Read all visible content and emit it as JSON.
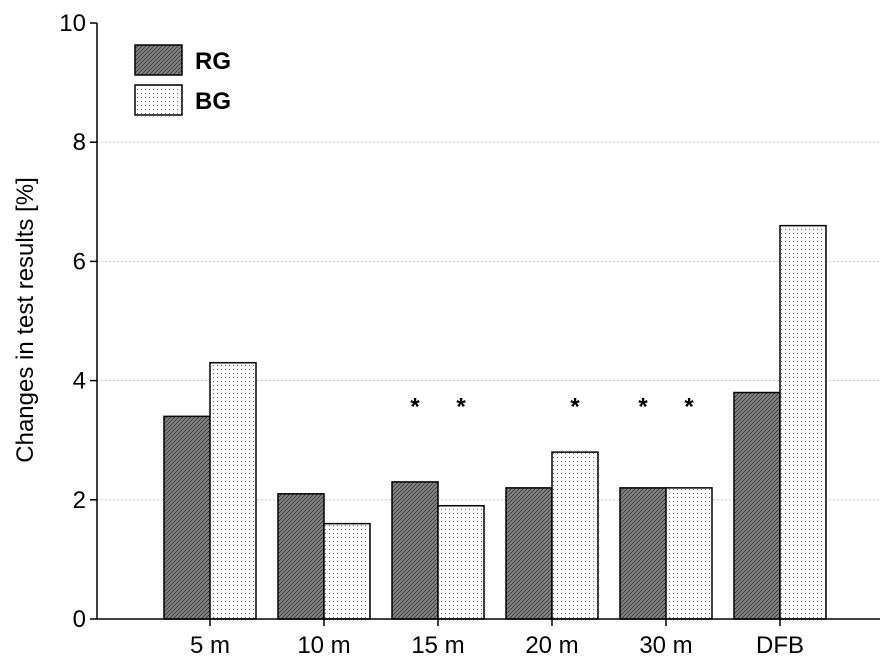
{
  "chart_data": {
    "type": "bar",
    "ylabel": "Changes in test results [%]",
    "xlabel": "",
    "categories": [
      "5 m",
      "10 m",
      "15 m",
      "20 m",
      "30 m",
      "DFB"
    ],
    "series": [
      {
        "name": "RG",
        "values": [
          3.4,
          2.1,
          2.3,
          2.2,
          2.2,
          3.8
        ]
      },
      {
        "name": "BG",
        "values": [
          4.3,
          1.6,
          1.9,
          2.8,
          2.2,
          6.6
        ]
      }
    ],
    "ylim": [
      0,
      10
    ],
    "yticks": [
      "0",
      "2",
      "4",
      "6",
      "8",
      "10"
    ],
    "grid": true,
    "legend_position": "top-left",
    "annotations": [
      {
        "text": "*",
        "category": "15 m",
        "series": "RG",
        "y": 3.7
      },
      {
        "text": "*",
        "category": "15 m",
        "series": "BG",
        "y": 3.7
      },
      {
        "text": "*",
        "category": "20 m",
        "series": "BG",
        "y": 3.7
      },
      {
        "text": "*",
        "category": "30 m",
        "series": "RG",
        "y": 3.7
      },
      {
        "text": "*",
        "category": "30 m",
        "series": "BG",
        "y": 3.7
      }
    ],
    "colors": {
      "axis": "#000000",
      "grid": "#c8c8c8",
      "bar_outline": "#000000"
    }
  }
}
